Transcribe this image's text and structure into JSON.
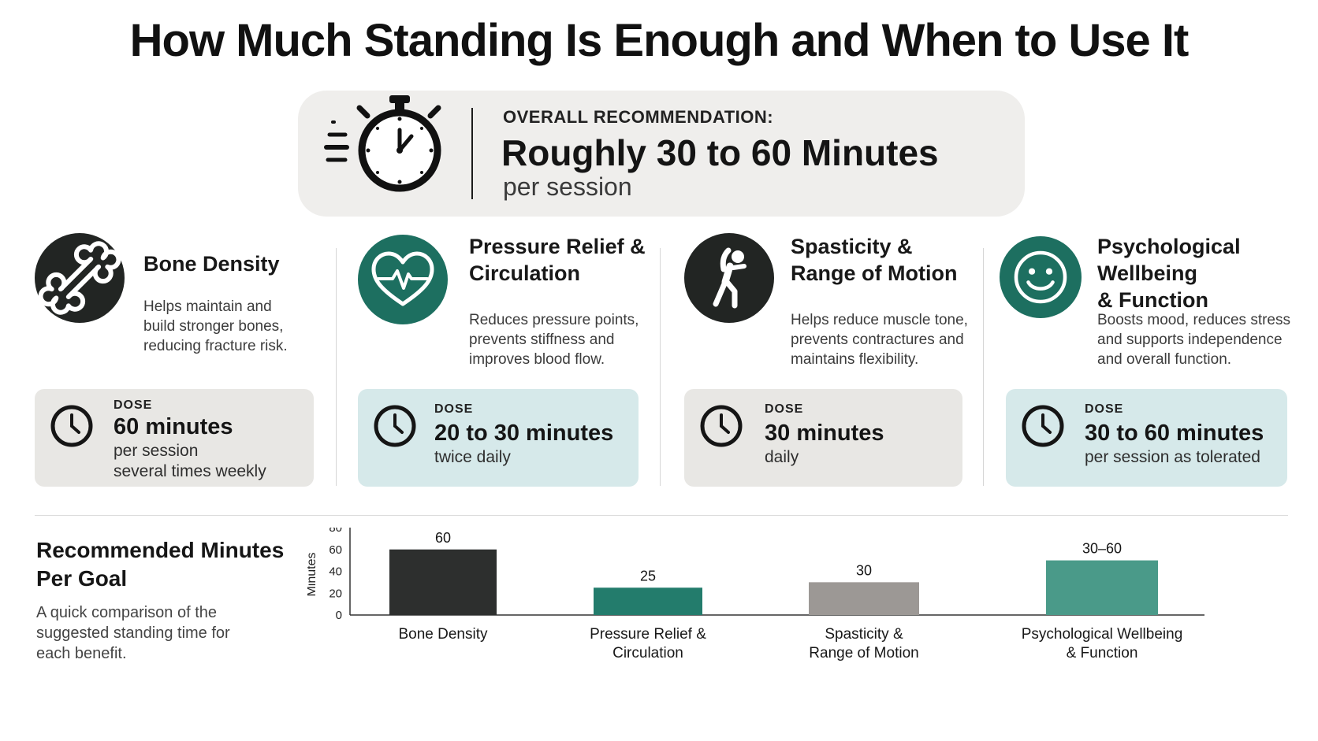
{
  "page": {
    "title": "How Much Standing Is Enough and When to Use It"
  },
  "recommendation": {
    "label": "OVERALL RECOMMENDATION:",
    "value": "Roughly 30 to 60 Minutes",
    "sub": "per session",
    "icon": "stopwatch-icon"
  },
  "benefits": [
    {
      "title_lines": [
        "Bone Density"
      ],
      "desc_lines": [
        "Helps maintain and",
        "build stronger bones,",
        "reducing fracture risk."
      ],
      "icon": "bone-icon",
      "dose_label": "DOSE",
      "dose_value": "60 minutes",
      "dose_lines": [
        "per session",
        "several times weekly"
      ]
    },
    {
      "title_lines": [
        "Pressure Relief &",
        "Circulation"
      ],
      "desc_lines": [
        "Reduces pressure points,",
        "prevents stiffness and",
        "improves blood flow."
      ],
      "icon": "heart-pulse-icon",
      "dose_label": "DOSE",
      "dose_value": "20 to 30 minutes",
      "dose_lines": [
        "twice daily"
      ]
    },
    {
      "title_lines": [
        "Spasticity &",
        "Range of Motion"
      ],
      "desc_lines": [
        "Helps reduce muscle tone,",
        "prevents contractures and",
        "maintains flexibility."
      ],
      "icon": "stretching-person-icon",
      "dose_label": "DOSE",
      "dose_value": "30 minutes",
      "dose_lines": [
        "daily"
      ]
    },
    {
      "title_lines": [
        "Psychological Wellbeing",
        "& Function"
      ],
      "desc_lines": [
        "Boosts mood, reduces stress",
        "and supports independence",
        "and overall function."
      ],
      "icon": "smiley-icon",
      "dose_label": "DOSE",
      "dose_value": "30 to 60 minutes",
      "dose_lines": [
        "per session as tolerated"
      ]
    }
  ],
  "chart_section": {
    "title_lines": [
      "Recommended Minutes",
      "Per Goal"
    ],
    "desc_lines": [
      "A quick comparison of the",
      "suggested standing time for",
      "each benefit."
    ]
  },
  "colors": {
    "dark": "#222523",
    "teal": "#1d6f60",
    "bar_dark": "#2d2f2e",
    "bar_teal": "#237c6c",
    "bar_grey": "#9c9895",
    "bar_teal_light": "#4a9a89"
  },
  "chart_data": {
    "type": "bar",
    "categories": [
      [
        "Bone Density"
      ],
      [
        "Pressure Relief &",
        "Circulation"
      ],
      [
        "Spasticity &",
        "Range of Motion"
      ],
      [
        "Psychological Wellbeing",
        "& Function"
      ]
    ],
    "values": [
      60,
      25,
      30,
      50
    ],
    "data_labels": [
      "60",
      "25",
      "30",
      "30–60"
    ],
    "bar_colors": [
      "#2d2f2e",
      "#237c6c",
      "#9c9895",
      "#4a9a89"
    ],
    "ylabel": "Minutes",
    "ylim": [
      0,
      80
    ],
    "yticks": [
      0,
      20,
      40,
      60,
      80
    ],
    "grid": false,
    "legend": "none"
  }
}
